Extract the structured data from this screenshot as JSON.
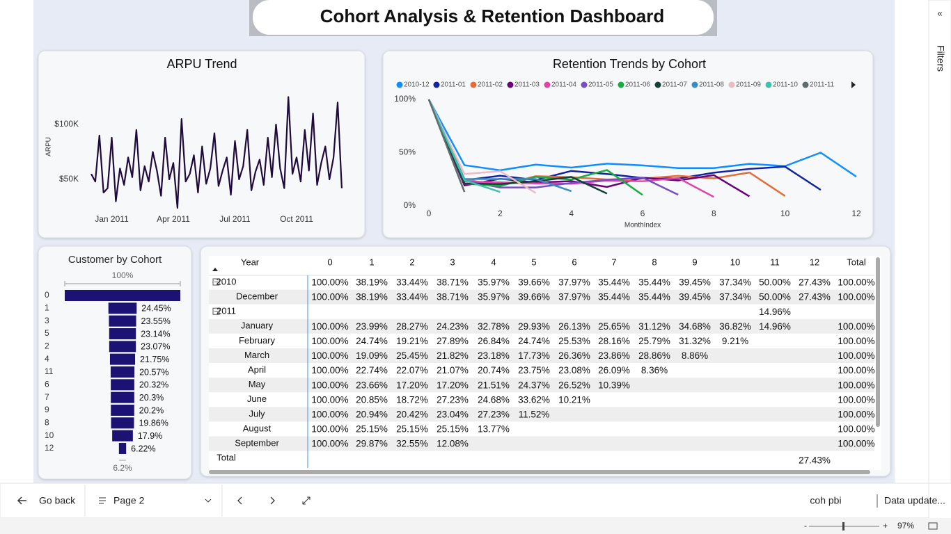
{
  "header": {
    "title": "Cohort Analysis & Retention Dashboard"
  },
  "chart_data": [
    {
      "type": "line",
      "title": "ARPU Trend",
      "ylabel": "ARPU",
      "color": "#1f0a3c",
      "categories": [
        null,
        null,
        null,
        null,
        null,
        "Jan 2011",
        null,
        null,
        null,
        null,
        null,
        null,
        null,
        null,
        null,
        null,
        null,
        null,
        null,
        null,
        "Apr 2011",
        null,
        null,
        null,
        null,
        null,
        null,
        null,
        null,
        null,
        null,
        null,
        null,
        null,
        null,
        "Jul 2011",
        null,
        null,
        null,
        null,
        null,
        null,
        null,
        null,
        null,
        null,
        null,
        null,
        null,
        null,
        "Oct 2011",
        null,
        null,
        null,
        null,
        null,
        null,
        null,
        null,
        null,
        null,
        null
      ],
      "values": [
        55000,
        48000,
        90000,
        38000,
        42000,
        88000,
        30000,
        60000,
        45000,
        70000,
        52000,
        95000,
        40000,
        62000,
        48000,
        75000,
        58000,
        35000,
        88000,
        50000,
        65000,
        24000,
        105000,
        48000,
        55000,
        72000,
        38000,
        80000,
        46000,
        60000,
        92000,
        44000,
        58000,
        70000,
        36000,
        85000,
        50000,
        62000,
        95000,
        40000,
        57000,
        68000,
        45000,
        88000,
        52000,
        100000,
        60000,
        42000,
        125000,
        55000,
        70000,
        48000,
        95000,
        58000,
        110000,
        45000,
        65000,
        80000,
        50000,
        70000,
        120000,
        42000
      ],
      "ylim": [
        20000,
        140000
      ],
      "yticks": [
        {
          "value": 50000,
          "label": "$50K"
        },
        {
          "value": 100000,
          "label": "$100K"
        }
      ]
    },
    {
      "type": "line",
      "title": "Retention Trends by Cohort",
      "xlabel": "MonthIndex",
      "xlim": [
        0,
        12
      ],
      "xticks": [
        0,
        2,
        4,
        6,
        8,
        10,
        12
      ],
      "ylim": [
        0,
        100
      ],
      "yticks": [
        {
          "value": 0,
          "label": "0%"
        },
        {
          "value": 50,
          "label": "50%"
        },
        {
          "value": 100,
          "label": "100%"
        }
      ],
      "x": [
        0,
        1,
        2,
        3,
        4,
        5,
        6,
        7,
        8,
        9,
        10,
        11,
        12
      ],
      "series": [
        {
          "name": "2010-12",
          "color": "#118dff",
          "values": [
            100,
            38.19,
            33.44,
            38.71,
            35.97,
            39.66,
            37.97,
            35.44,
            35.44,
            39.45,
            37.34,
            50.0,
            27.43
          ]
        },
        {
          "name": "2011-01",
          "color": "#12239e",
          "values": [
            100,
            23.99,
            28.27,
            24.23,
            32.78,
            29.93,
            26.13,
            25.65,
            31.12,
            34.68,
            36.82,
            14.96,
            null
          ]
        },
        {
          "name": "2011-02",
          "color": "#e66c37",
          "values": [
            100,
            24.74,
            19.21,
            27.89,
            26.84,
            24.74,
            25.53,
            28.16,
            25.79,
            31.32,
            9.21,
            null,
            null
          ]
        },
        {
          "name": "2011-03",
          "color": "#6b007b",
          "values": [
            100,
            19.09,
            25.45,
            21.82,
            23.18,
            17.73,
            26.36,
            23.86,
            28.86,
            8.86,
            null,
            null,
            null
          ]
        },
        {
          "name": "2011-04",
          "color": "#e044a7",
          "values": [
            100,
            22.74,
            22.07,
            21.07,
            20.74,
            23.75,
            23.08,
            26.09,
            8.36,
            null,
            null,
            null,
            null
          ]
        },
        {
          "name": "2011-05",
          "color": "#744ec2",
          "values": [
            100,
            23.66,
            17.2,
            17.2,
            21.51,
            24.37,
            26.52,
            10.39,
            null,
            null,
            null,
            null,
            null
          ]
        },
        {
          "name": "2011-06",
          "color": "#1aab40",
          "values": [
            100,
            20.85,
            18.72,
            27.23,
            24.68,
            33.62,
            10.21,
            null,
            null,
            null,
            null,
            null,
            null
          ]
        },
        {
          "name": "2011-07",
          "color": "#15403a",
          "values": [
            100,
            20.94,
            20.42,
            23.04,
            27.23,
            11.52,
            null,
            null,
            null,
            null,
            null,
            null,
            null
          ]
        },
        {
          "name": "2011-08",
          "color": "#3a8dbf",
          "values": [
            100,
            25.15,
            25.15,
            25.15,
            13.77,
            null,
            null,
            null,
            null,
            null,
            null,
            null,
            null
          ]
        },
        {
          "name": "2011-09",
          "color": "#e8bcc2",
          "values": [
            100,
            29.87,
            32.55,
            12.08,
            null,
            null,
            null,
            null,
            null,
            null,
            null,
            null,
            null
          ]
        },
        {
          "name": "2011-10",
          "color": "#3fc1b0",
          "values": [
            100,
            24,
            13,
            null,
            null,
            null,
            null,
            null,
            null,
            null,
            null,
            null,
            null
          ]
        },
        {
          "name": "2011-11",
          "color": "#5f6b6d",
          "values": [
            100,
            13,
            null,
            null,
            null,
            null,
            null,
            null,
            null,
            null,
            null,
            null,
            null
          ]
        }
      ]
    },
    {
      "type": "funnel",
      "title": "Customer by Cohort",
      "color": "#1c1273",
      "categories": [
        "0",
        "1",
        "3",
        "5",
        "2",
        "4",
        "11",
        "6",
        "7",
        "9",
        "8",
        "10",
        "12"
      ],
      "values": [
        100,
        24.45,
        23.55,
        23.14,
        23.07,
        21.75,
        20.57,
        20.32,
        20.3,
        20.2,
        19.86,
        17.9,
        6.22
      ],
      "value_labels": [
        "100%",
        "24.45%",
        "23.55%",
        "23.14%",
        "23.07%",
        "21.75%",
        "20.57%",
        "20.32%",
        "20.3%",
        "20.2%",
        "19.86%",
        "17.9%",
        "6.22%"
      ],
      "min_label": "6.2%"
    }
  ],
  "table": {
    "columns": [
      "Year",
      "0",
      "1",
      "2",
      "3",
      "4",
      "5",
      "6",
      "7",
      "8",
      "9",
      "10",
      "11",
      "12",
      "Total"
    ],
    "groups": [
      {
        "label": "2010",
        "cells": [
          "100.00%",
          "38.19%",
          "33.44%",
          "38.71%",
          "35.97%",
          "39.66%",
          "37.97%",
          "35.44%",
          "35.44%",
          "39.45%",
          "37.34%",
          "50.00%",
          "27.43%",
          "100.00%"
        ],
        "rows": [
          {
            "label": "December",
            "cells": [
              "100.00%",
              "38.19%",
              "33.44%",
              "38.71%",
              "35.97%",
              "39.66%",
              "37.97%",
              "35.44%",
              "35.44%",
              "39.45%",
              "37.34%",
              "50.00%",
              "27.43%",
              "100.00%"
            ]
          }
        ]
      },
      {
        "label": "2011",
        "cells": [
          null,
          null,
          null,
          null,
          null,
          null,
          null,
          null,
          null,
          null,
          null,
          "14.96%",
          null,
          null
        ],
        "rows": [
          {
            "label": "January",
            "cells": [
              "100.00%",
              "23.99%",
              "28.27%",
              "24.23%",
              "32.78%",
              "29.93%",
              "26.13%",
              "25.65%",
              "31.12%",
              "34.68%",
              "36.82%",
              "14.96%",
              null,
              "100.00%"
            ]
          },
          {
            "label": "February",
            "cells": [
              "100.00%",
              "24.74%",
              "19.21%",
              "27.89%",
              "26.84%",
              "24.74%",
              "25.53%",
              "28.16%",
              "25.79%",
              "31.32%",
              "9.21%",
              null,
              null,
              "100.00%"
            ]
          },
          {
            "label": "March",
            "cells": [
              "100.00%",
              "19.09%",
              "25.45%",
              "21.82%",
              "23.18%",
              "17.73%",
              "26.36%",
              "23.86%",
              "28.86%",
              "8.86%",
              null,
              null,
              null,
              "100.00%"
            ]
          },
          {
            "label": "April",
            "cells": [
              "100.00%",
              "22.74%",
              "22.07%",
              "21.07%",
              "20.74%",
              "23.75%",
              "23.08%",
              "26.09%",
              "8.36%",
              null,
              null,
              null,
              null,
              "100.00%"
            ]
          },
          {
            "label": "May",
            "cells": [
              "100.00%",
              "23.66%",
              "17.20%",
              "17.20%",
              "21.51%",
              "24.37%",
              "26.52%",
              "10.39%",
              null,
              null,
              null,
              null,
              null,
              "100.00%"
            ]
          },
          {
            "label": "June",
            "cells": [
              "100.00%",
              "20.85%",
              "18.72%",
              "27.23%",
              "24.68%",
              "33.62%",
              "10.21%",
              null,
              null,
              null,
              null,
              null,
              null,
              "100.00%"
            ]
          },
          {
            "label": "July",
            "cells": [
              "100.00%",
              "20.94%",
              "20.42%",
              "23.04%",
              "27.23%",
              "11.52%",
              null,
              null,
              null,
              null,
              null,
              null,
              null,
              "100.00%"
            ]
          },
          {
            "label": "August",
            "cells": [
              "100.00%",
              "25.15%",
              "25.15%",
              "25.15%",
              "13.77%",
              null,
              null,
              null,
              null,
              null,
              null,
              null,
              null,
              "100.00%"
            ]
          },
          {
            "label": "September",
            "cells": [
              "100.00%",
              "29.87%",
              "32.55%",
              "12.08%",
              null,
              null,
              null,
              null,
              null,
              null,
              null,
              null,
              null,
              "100.00%"
            ]
          }
        ]
      }
    ],
    "total": {
      "label": "Total",
      "cells": [
        null,
        null,
        null,
        null,
        null,
        null,
        null,
        null,
        null,
        null,
        null,
        null,
        "27.43%",
        null
      ]
    }
  },
  "footer": {
    "back": "Go back",
    "page": "Page 2",
    "report": "coh pbi",
    "status": "Data update...",
    "zoom": "97%",
    "filters": "Filters"
  }
}
